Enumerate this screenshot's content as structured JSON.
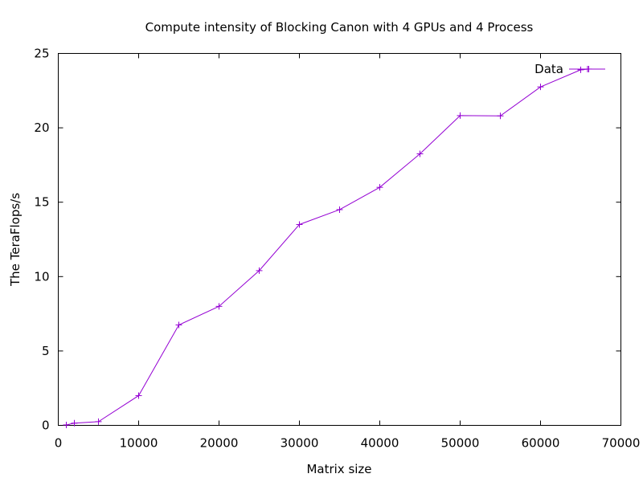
{
  "chart_data": {
    "type": "line",
    "title": "Compute intensity of Blocking Canon with 4 GPUs and 4 Process",
    "xlabel": "Matrix size",
    "ylabel": "The TeraFlops/s",
    "xlim": [
      0,
      70000
    ],
    "ylim": [
      0,
      25
    ],
    "x_ticks": [
      0,
      10000,
      20000,
      30000,
      40000,
      50000,
      60000,
      70000
    ],
    "y_ticks": [
      0,
      5,
      10,
      15,
      20,
      25
    ],
    "grid": false,
    "legend_position": "top-right",
    "series": [
      {
        "name": "Data",
        "color": "#9400d3",
        "marker": "plus",
        "x": [
          1000,
          2000,
          5000,
          10000,
          15000,
          20000,
          25000,
          30000,
          35000,
          40000,
          45000,
          50000,
          55000,
          60000,
          65000,
          66000,
          68000
        ],
        "y": [
          0.03,
          0.15,
          0.25,
          2.0,
          6.75,
          8.0,
          10.4,
          13.5,
          14.5,
          16.0,
          18.25,
          20.82,
          20.8,
          22.75,
          23.9,
          23.95,
          23.95
        ],
        "marked": [
          true,
          true,
          true,
          true,
          true,
          true,
          true,
          true,
          true,
          true,
          true,
          true,
          true,
          true,
          true,
          true,
          false
        ]
      }
    ]
  }
}
